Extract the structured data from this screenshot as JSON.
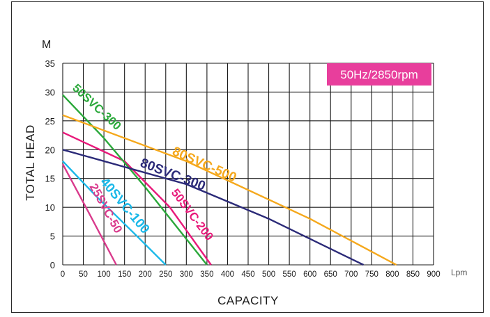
{
  "chart_data": {
    "type": "line",
    "title": "",
    "xlabel": "CAPACITY",
    "ylabel": "TOTAL HEAD",
    "y_unit": "M",
    "x_unit": "Lpm",
    "annotation": {
      "text": "50Hz/2850rpm",
      "color": "#e83e9c"
    },
    "xlim": [
      0,
      900
    ],
    "ylim": [
      0,
      35
    ],
    "x_ticks": [
      "0",
      "50",
      "100",
      "150",
      "200",
      "250",
      "300",
      "350",
      "400",
      "450",
      "500",
      "550",
      "600",
      "650",
      "700",
      "750",
      "800",
      "850",
      "900"
    ],
    "y_ticks": [
      "0",
      "5",
      "10",
      "15",
      "20",
      "25",
      "30",
      "35"
    ],
    "grid": true,
    "series": [
      {
        "name": "25SVC-50",
        "color": "#d93a8c",
        "x": [
          0,
          60,
          130
        ],
        "y": [
          17.5,
          9.5,
          0
        ]
      },
      {
        "name": "40SVC-100",
        "color": "#1ab8e8",
        "x": [
          0,
          80,
          180,
          250
        ],
        "y": [
          18,
          12,
          5,
          0
        ]
      },
      {
        "name": "50SVC-200",
        "color": "#e8197a",
        "x": [
          0,
          150,
          260,
          360
        ],
        "y": [
          23,
          18,
          10,
          0
        ]
      },
      {
        "name": "50SVC-300",
        "color": "#2aa83a",
        "x": [
          0,
          100,
          200,
          350
        ],
        "y": [
          29.5,
          22,
          13.5,
          0
        ]
      },
      {
        "name": "80SVC-300",
        "color": "#2b2a78",
        "x": [
          0,
          300,
          500,
          730
        ],
        "y": [
          20,
          14,
          8,
          0
        ]
      },
      {
        "name": "80SVC-500",
        "color": "#f5a81c",
        "x": [
          0,
          300,
          600,
          810
        ],
        "y": [
          26,
          18,
          8,
          0
        ]
      }
    ]
  }
}
